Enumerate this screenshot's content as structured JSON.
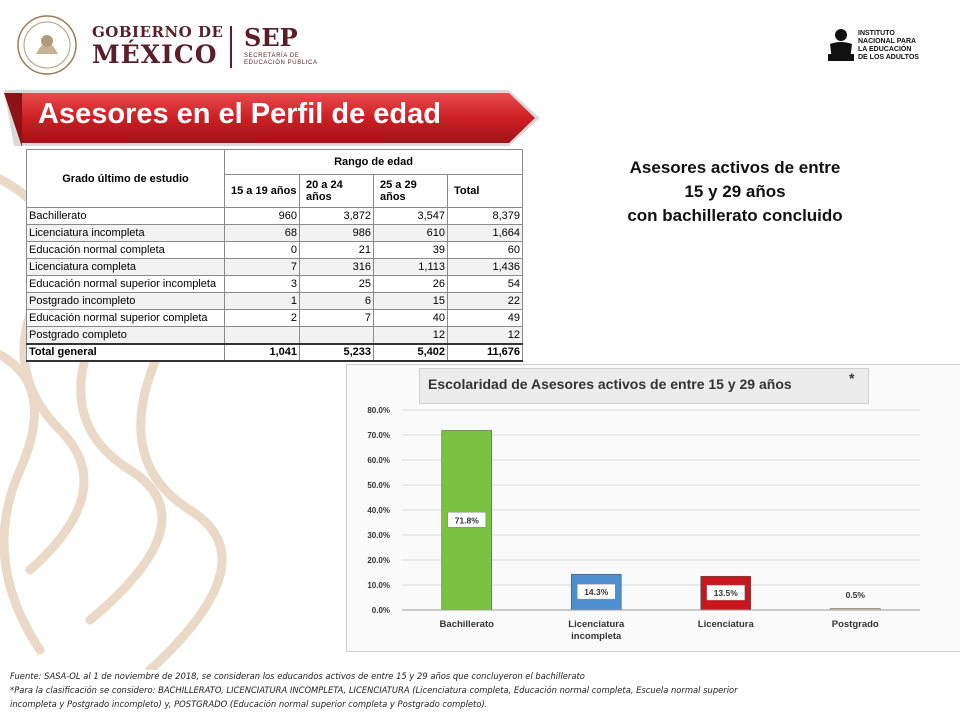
{
  "header": {
    "gobierno_line1": "GOBIERNO DE",
    "gobierno_line2": "MÉXICO",
    "sep_name": "SEP",
    "sep_sub": "SECRETARÍA DE EDUCACIÓN PÚBLICA",
    "inea_line1": "INSTITUTO",
    "inea_line2": "NACIONAL PARA",
    "inea_line3": "LA EDUCACIÓN",
    "inea_line4": "DE LOS ADULTOS"
  },
  "title": "Asesores en el Perfil de edad",
  "table": {
    "corner_label": "Grado último de estudio",
    "group_label": "Rango de edad",
    "columns": [
      "15 a 19 años",
      "20 a 24 años",
      "25 a 29 años",
      "Total"
    ],
    "rows": [
      {
        "label": "Bachillerato",
        "values": [
          "960",
          "3,872",
          "3,547",
          "8,379"
        ]
      },
      {
        "label": "Licenciatura incompleta",
        "values": [
          "68",
          "986",
          "610",
          "1,664"
        ]
      },
      {
        "label": "Educación normal completa",
        "values": [
          "0",
          "21",
          "39",
          "60"
        ]
      },
      {
        "label": "Licenciatura completa",
        "values": [
          "7",
          "316",
          "1,113",
          "1,436"
        ]
      },
      {
        "label": "Educación normal superior incompleta",
        "values": [
          "3",
          "25",
          "26",
          "54"
        ]
      },
      {
        "label": "Postgrado incompleto",
        "values": [
          "1",
          "6",
          "15",
          "22"
        ]
      },
      {
        "label": "Educación normal superior completa",
        "values": [
          "2",
          "7",
          "40",
          "49"
        ]
      },
      {
        "label": "Postgrado completo",
        "values": [
          "",
          "",
          "12",
          "12"
        ]
      }
    ],
    "total": {
      "label": "Total general",
      "values": [
        "1,041",
        "5,233",
        "5,402",
        "11,676"
      ]
    }
  },
  "caption": {
    "line1": "Asesores activos de entre",
    "line2": "15 y 29 años",
    "line3": "con bachillerato concluido"
  },
  "chart_title": "Escolaridad de Asesores activos de entre 15 y 29 años",
  "chart_title_mark": "*",
  "chart_data": {
    "type": "bar",
    "title": "Escolaridad de Asesores activos de entre 15 y 29 años",
    "categories": [
      "Bachillerato",
      "Licenciatura incompleta",
      "Licenciatura",
      "Postgrado"
    ],
    "category_label_lines": [
      [
        "Bachillerato"
      ],
      [
        "Licenciatura",
        "incompleta"
      ],
      [
        "Licenciatura"
      ],
      [
        "Postgrado"
      ]
    ],
    "values": [
      71.8,
      14.3,
      13.5,
      0.5
    ],
    "data_labels": [
      "71.8%",
      "14.3%",
      "13.5%",
      "0.5%"
    ],
    "yticks": [
      "0.0%",
      "10.0%",
      "20.0%",
      "30.0%",
      "40.0%",
      "50.0%",
      "60.0%",
      "70.0%",
      "80.0%"
    ],
    "ylim": [
      0,
      80
    ],
    "grid": true,
    "legend": "none",
    "colors": [
      "#7cc242",
      "#4f8fd0",
      "#c8161d",
      "#f2e68c"
    ]
  },
  "footer": {
    "line1": "Fuente: SASA-OL  al 1 de noviembre de 2018, se consideran los educandos activos de entre 15 y 29 años que concluyeron el bachillerato",
    "line2": "*Para la clasificación se considero:  BACHILLERATO, LICENCIATURA INCOMPLETA, LICENCIATURA (Licenciatura completa, Educación normal completa, Escuela normal superior",
    "line3": "incompleta y Postgrado incompleto) y, POSTGRADO (Educación normal superior completa y Postgrado completo)."
  },
  "colors": {
    "brand_maroon": "#5a1f2b",
    "banner_red": "#cc1f23"
  }
}
